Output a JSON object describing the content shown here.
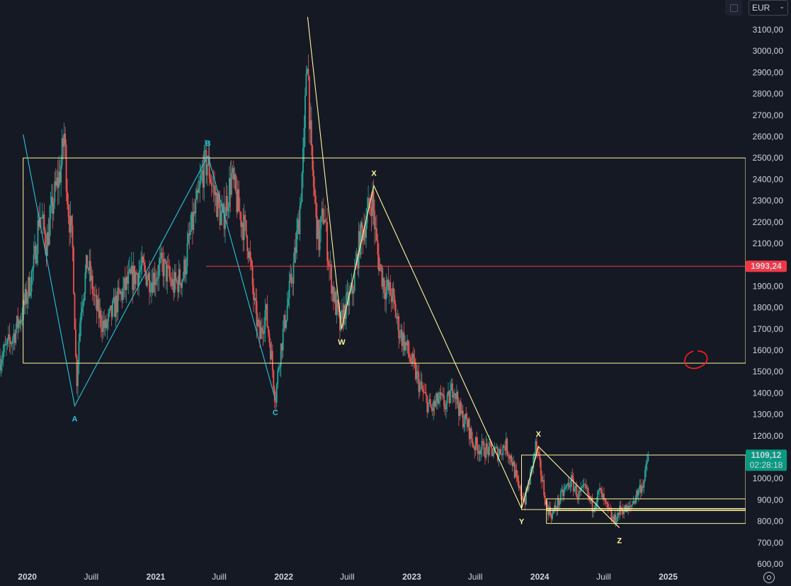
{
  "toolbar": {
    "currency": "EUR",
    "currency_chevron": "chevron-down-icon",
    "layout_icon": "square-icon",
    "settings_icon": "gear-icon"
  },
  "chart_data": {
    "type": "candlestick",
    "title": "",
    "xlabel": "",
    "ylabel": "",
    "ylim": [
      600,
      3200
    ],
    "xlim": [
      "2019-10-15",
      "2025-08-10"
    ],
    "grid": false,
    "y_ticks": [
      "3100,00",
      "3000,00",
      "2900,00",
      "2800,00",
      "2700,00",
      "2600,00",
      "2500,00",
      "2400,00",
      "2300,00",
      "2200,00",
      "2100,00",
      "2000,00",
      "1900,00",
      "1800,00",
      "1700,00",
      "1600,00",
      "1500,00",
      "1400,00",
      "1300,00",
      "1200,00",
      "1100,00",
      "1000,00",
      "900,00",
      "800,00",
      "700,00",
      "600,00"
    ],
    "y_tick_values": [
      3100,
      3000,
      2900,
      2800,
      2700,
      2600,
      2500,
      2400,
      2300,
      2200,
      2100,
      2000,
      1900,
      1800,
      1700,
      1600,
      1500,
      1400,
      1300,
      1200,
      1100,
      1000,
      900,
      800,
      700,
      600
    ],
    "x_ticks": [
      {
        "label": "2020",
        "date": "2020-01-01"
      },
      {
        "label": "Juill",
        "date": "2020-07-01"
      },
      {
        "label": "2021",
        "date": "2021-01-01"
      },
      {
        "label": "Juill",
        "date": "2021-07-01"
      },
      {
        "label": "2022",
        "date": "2022-01-01"
      },
      {
        "label": "Juill",
        "date": "2022-07-01"
      },
      {
        "label": "2023",
        "date": "2023-01-01"
      },
      {
        "label": "Juill",
        "date": "2023-07-01"
      },
      {
        "label": "2024",
        "date": "2024-01-01"
      },
      {
        "label": "Juill",
        "date": "2024-07-01"
      },
      {
        "label": "2025",
        "date": "2025-01-01"
      }
    ],
    "up_color": "#26a69a",
    "down_color": "#ef5350",
    "price_path": [
      [
        "2019-10-15",
        1560
      ],
      [
        "2019-11-20",
        1660
      ],
      [
        "2019-12-20",
        1790
      ],
      [
        "2020-01-20",
        2000
      ],
      [
        "2020-02-05",
        2250
      ],
      [
        "2020-02-25",
        2100
      ],
      [
        "2020-03-15",
        2300
      ],
      [
        "2020-04-05",
        2450
      ],
      [
        "2020-04-15",
        2610
      ],
      [
        "2020-04-25",
        2300
      ],
      [
        "2020-05-10",
        2050
      ],
      [
        "2020-05-20",
        1440
      ],
      [
        "2020-06-01",
        1800
      ],
      [
        "2020-06-20",
        2010
      ],
      [
        "2020-07-15",
        1800
      ],
      [
        "2020-08-10",
        1700
      ],
      [
        "2020-09-10",
        1820
      ],
      [
        "2020-10-15",
        1920
      ],
      [
        "2020-11-20",
        1980
      ],
      [
        "2020-12-20",
        1930
      ],
      [
        "2021-01-20",
        2000
      ],
      [
        "2021-02-20",
        1900
      ],
      [
        "2021-03-20",
        1950
      ],
      [
        "2021-04-10",
        2150
      ],
      [
        "2021-05-01",
        2300
      ],
      [
        "2021-05-15",
        2440
      ],
      [
        "2021-05-28",
        2480
      ],
      [
        "2021-06-15",
        2350
      ],
      [
        "2021-07-10",
        2200
      ],
      [
        "2021-08-05",
        2410
      ],
      [
        "2021-08-25",
        2260
      ],
      [
        "2021-09-20",
        2120
      ],
      [
        "2021-10-10",
        1800
      ],
      [
        "2021-10-25",
        1660
      ],
      [
        "2021-11-10",
        1790
      ],
      [
        "2021-11-25",
        1600
      ],
      [
        "2021-12-08",
        1370
      ],
      [
        "2021-12-20",
        1570
      ],
      [
        "2022-01-10",
        1800
      ],
      [
        "2022-01-30",
        2000
      ],
      [
        "2022-02-15",
        2250
      ],
      [
        "2022-03-01",
        2600
      ],
      [
        "2022-03-08",
        3050
      ],
      [
        "2022-03-20",
        2500
      ],
      [
        "2022-04-10",
        2100
      ],
      [
        "2022-04-25",
        2260
      ],
      [
        "2022-05-10",
        2000
      ],
      [
        "2022-05-25",
        1840
      ],
      [
        "2022-06-10",
        1710
      ],
      [
        "2022-06-25",
        1800
      ],
      [
        "2022-07-15",
        1870
      ],
      [
        "2022-08-05",
        2110
      ],
      [
        "2022-08-25",
        2220
      ],
      [
        "2022-09-10",
        2320
      ],
      [
        "2022-09-25",
        2050
      ],
      [
        "2022-10-15",
        1900
      ],
      [
        "2022-11-05",
        1860
      ],
      [
        "2022-11-25",
        1700
      ],
      [
        "2022-12-15",
        1620
      ],
      [
        "2023-01-10",
        1500
      ],
      [
        "2023-02-01",
        1400
      ],
      [
        "2023-02-25",
        1320
      ],
      [
        "2023-03-20",
        1370
      ],
      [
        "2023-04-10",
        1340
      ],
      [
        "2023-04-30",
        1440
      ],
      [
        "2023-05-20",
        1300
      ],
      [
        "2023-06-10",
        1250
      ],
      [
        "2023-06-25",
        1160
      ],
      [
        "2023-07-20",
        1140
      ],
      [
        "2023-08-15",
        1130
      ],
      [
        "2023-09-05",
        1120
      ],
      [
        "2023-09-25",
        1160
      ],
      [
        "2023-10-15",
        1080
      ],
      [
        "2023-11-01",
        950
      ],
      [
        "2023-11-20",
        900
      ],
      [
        "2023-12-05",
        1010
      ],
      [
        "2023-12-20",
        1150
      ],
      [
        "2024-01-05",
        1020
      ],
      [
        "2024-01-20",
        870
      ],
      [
        "2024-02-05",
        830
      ],
      [
        "2024-02-20",
        880
      ],
      [
        "2024-03-10",
        940
      ],
      [
        "2024-03-30",
        990
      ],
      [
        "2024-04-20",
        920
      ],
      [
        "2024-05-10",
        950
      ],
      [
        "2024-05-30",
        870
      ],
      [
        "2024-06-20",
        940
      ],
      [
        "2024-07-10",
        860
      ],
      [
        "2024-07-30",
        800
      ],
      [
        "2024-08-20",
        860
      ],
      [
        "2024-09-10",
        850
      ],
      [
        "2024-09-25",
        900
      ],
      [
        "2024-10-10",
        950
      ],
      [
        "2024-10-25",
        990
      ],
      [
        "2024-11-05",
        1109.12
      ]
    ],
    "waves": [
      {
        "color": "#26c6da",
        "points": [
          [
            "2019-12-20",
            2610
          ],
          [
            "2020-05-15",
            1340
          ],
          [
            "2021-05-30",
            2510
          ],
          [
            "2021-12-08",
            1370
          ]
        ],
        "labels": [
          {
            "text": "A",
            "date": "2020-05-15",
            "value": 1340,
            "pos": "below"
          },
          {
            "text": "B",
            "date": "2021-05-30",
            "value": 2510,
            "pos": "above"
          },
          {
            "text": "C",
            "date": "2021-12-08",
            "value": 1370,
            "pos": "below"
          }
        ]
      },
      {
        "color": "#fff59d",
        "points": [
          [
            "2022-03-10",
            3160
          ],
          [
            "2022-06-15",
            1700
          ],
          [
            "2022-09-15",
            2370
          ],
          [
            "2023-11-10",
            860
          ],
          [
            "2023-12-28",
            1150
          ],
          [
            "2024-08-15",
            770
          ]
        ],
        "labels": [
          {
            "text": "W",
            "date": "2022-06-15",
            "value": 1700,
            "pos": "below"
          },
          {
            "text": "X",
            "date": "2022-09-15",
            "value": 2370,
            "pos": "above"
          },
          {
            "text": "Y",
            "date": "2023-11-10",
            "value": 860,
            "pos": "below"
          },
          {
            "text": "X",
            "date": "2023-12-28",
            "value": 1150,
            "pos": "above"
          },
          {
            "text": "Z",
            "date": "2024-08-15",
            "value": 770,
            "pos": "below"
          }
        ]
      },
      {
        "color": "#fff59d",
        "points": [
          [
            "2023-11-10",
            860
          ],
          [
            "2023-12-28",
            1150
          ]
        ],
        "labels": []
      }
    ],
    "boxes": [
      {
        "from": "2019-12-20",
        "to": "2025-08-10",
        "top": 2500,
        "bottom": 1540,
        "color": "#fff59d"
      },
      {
        "from": "2023-11-10",
        "to": "2025-08-10",
        "top": 1110,
        "bottom": 855,
        "color": "#fff59d"
      },
      {
        "from": "2024-01-20",
        "to": "2025-08-10",
        "top": 905,
        "bottom": 790,
        "color": "#fff59d"
      },
      {
        "from": "2024-01-20",
        "to": "2025-08-10",
        "top": 860,
        "bottom": 850,
        "color": "#fff59d"
      }
    ],
    "hlines": [
      {
        "value": 1993.24,
        "from": "2021-05-25",
        "to": "2025-08-10",
        "color": "#f23645"
      }
    ],
    "price_tags": [
      {
        "text": "1993,24",
        "value": 1993.24,
        "color": "#f23645",
        "kind": "line"
      },
      {
        "text": "1109,12",
        "sub": "02:28:18",
        "value": 1109.12,
        "color": "#089981",
        "kind": "last"
      }
    ],
    "annotation": {
      "kind": "red-circle-scribble",
      "date": "2025-03-10",
      "value": 1550,
      "color": "#ff1f1f"
    }
  }
}
